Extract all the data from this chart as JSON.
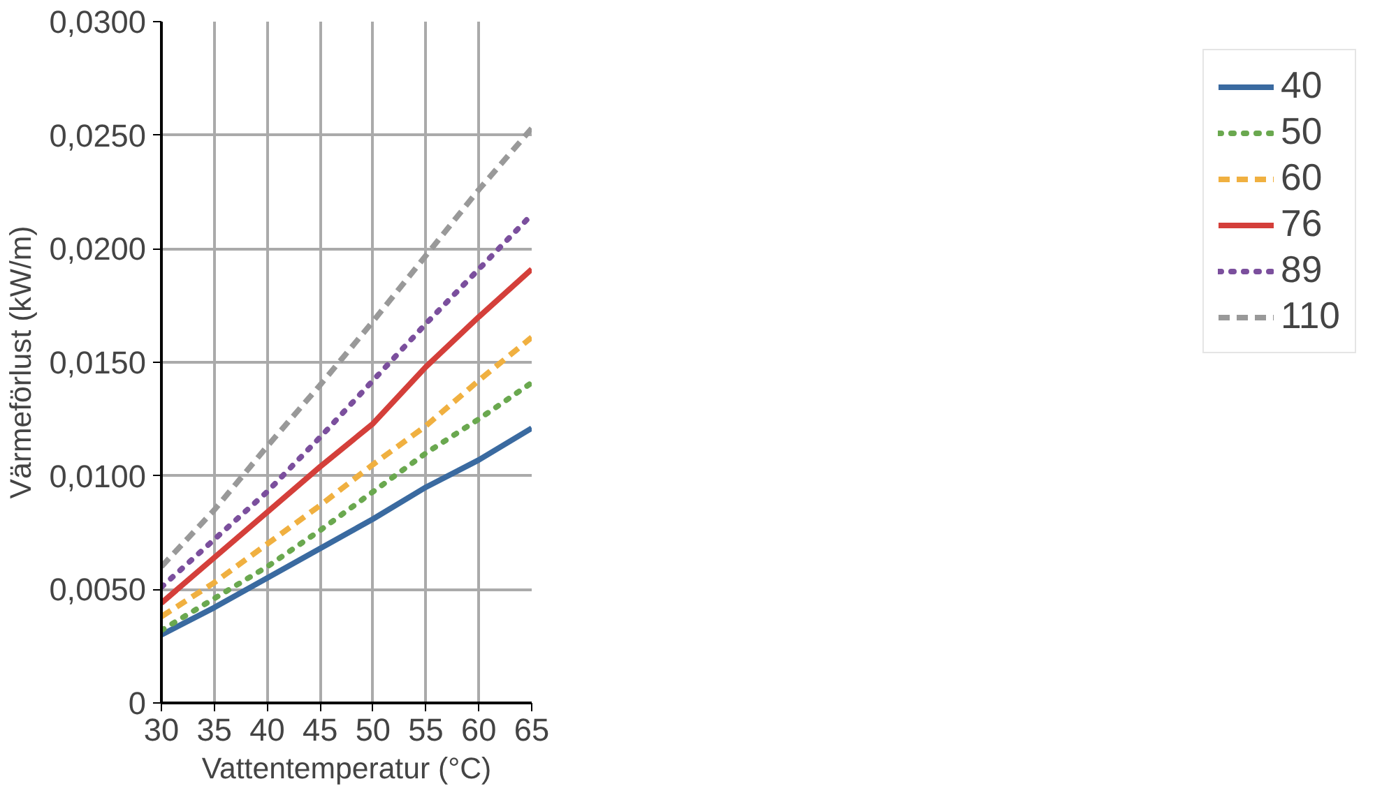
{
  "chart_data": {
    "type": "line",
    "xlabel": "Vattentemperatur (°C)",
    "ylabel": "Värmeförlust (kW/m)",
    "x": [
      30,
      35,
      40,
      45,
      50,
      55,
      60,
      65
    ],
    "xlim": [
      30,
      65
    ],
    "xticks": [
      30,
      35,
      40,
      45,
      50,
      55,
      60,
      65
    ],
    "ylim": [
      0,
      0.03
    ],
    "yticks": [
      {
        "value": 0,
        "label": "0"
      },
      {
        "value": 0.005,
        "label": "0,0050"
      },
      {
        "value": 0.01,
        "label": "0,0100"
      },
      {
        "value": 0.015,
        "label": "0,0150"
      },
      {
        "value": 0.02,
        "label": "0,0200"
      },
      {
        "value": 0.025,
        "label": "0,0250"
      },
      {
        "value": 0.03,
        "label": "0,0300"
      }
    ],
    "grid": true,
    "legend": "right",
    "marker": "none",
    "series": [
      {
        "name": "40",
        "color": "#3a6aa0",
        "line_style": "solid",
        "values": [
          0.003,
          0.0042,
          0.0055,
          0.0068,
          0.0081,
          0.0095,
          0.0107,
          0.0121
        ]
      },
      {
        "name": "50",
        "color": "#6aa84f",
        "line_style": "dotted",
        "values": [
          0.0032,
          0.0046,
          0.006,
          0.0076,
          0.0093,
          0.011,
          0.0125,
          0.0141
        ]
      },
      {
        "name": "60",
        "color": "#f0b040",
        "line_style": "dashed",
        "values": [
          0.0038,
          0.0053,
          0.007,
          0.0087,
          0.0105,
          0.0122,
          0.0142,
          0.0161
        ]
      },
      {
        "name": "76",
        "color": "#d43f3a",
        "line_style": "solid",
        "values": [
          0.0044,
          0.0064,
          0.0084,
          0.0104,
          0.0123,
          0.0148,
          0.017,
          0.0191
        ]
      },
      {
        "name": "89",
        "color": "#7b4f9d",
        "line_style": "dotted",
        "values": [
          0.0051,
          0.0072,
          0.0093,
          0.0117,
          0.0142,
          0.0167,
          0.0191,
          0.0215
        ]
      },
      {
        "name": "110",
        "color": "#999999",
        "line_style": "dashed",
        "values": [
          0.006,
          0.0085,
          0.0113,
          0.014,
          0.0168,
          0.0197,
          0.0226,
          0.0253
        ]
      }
    ]
  }
}
